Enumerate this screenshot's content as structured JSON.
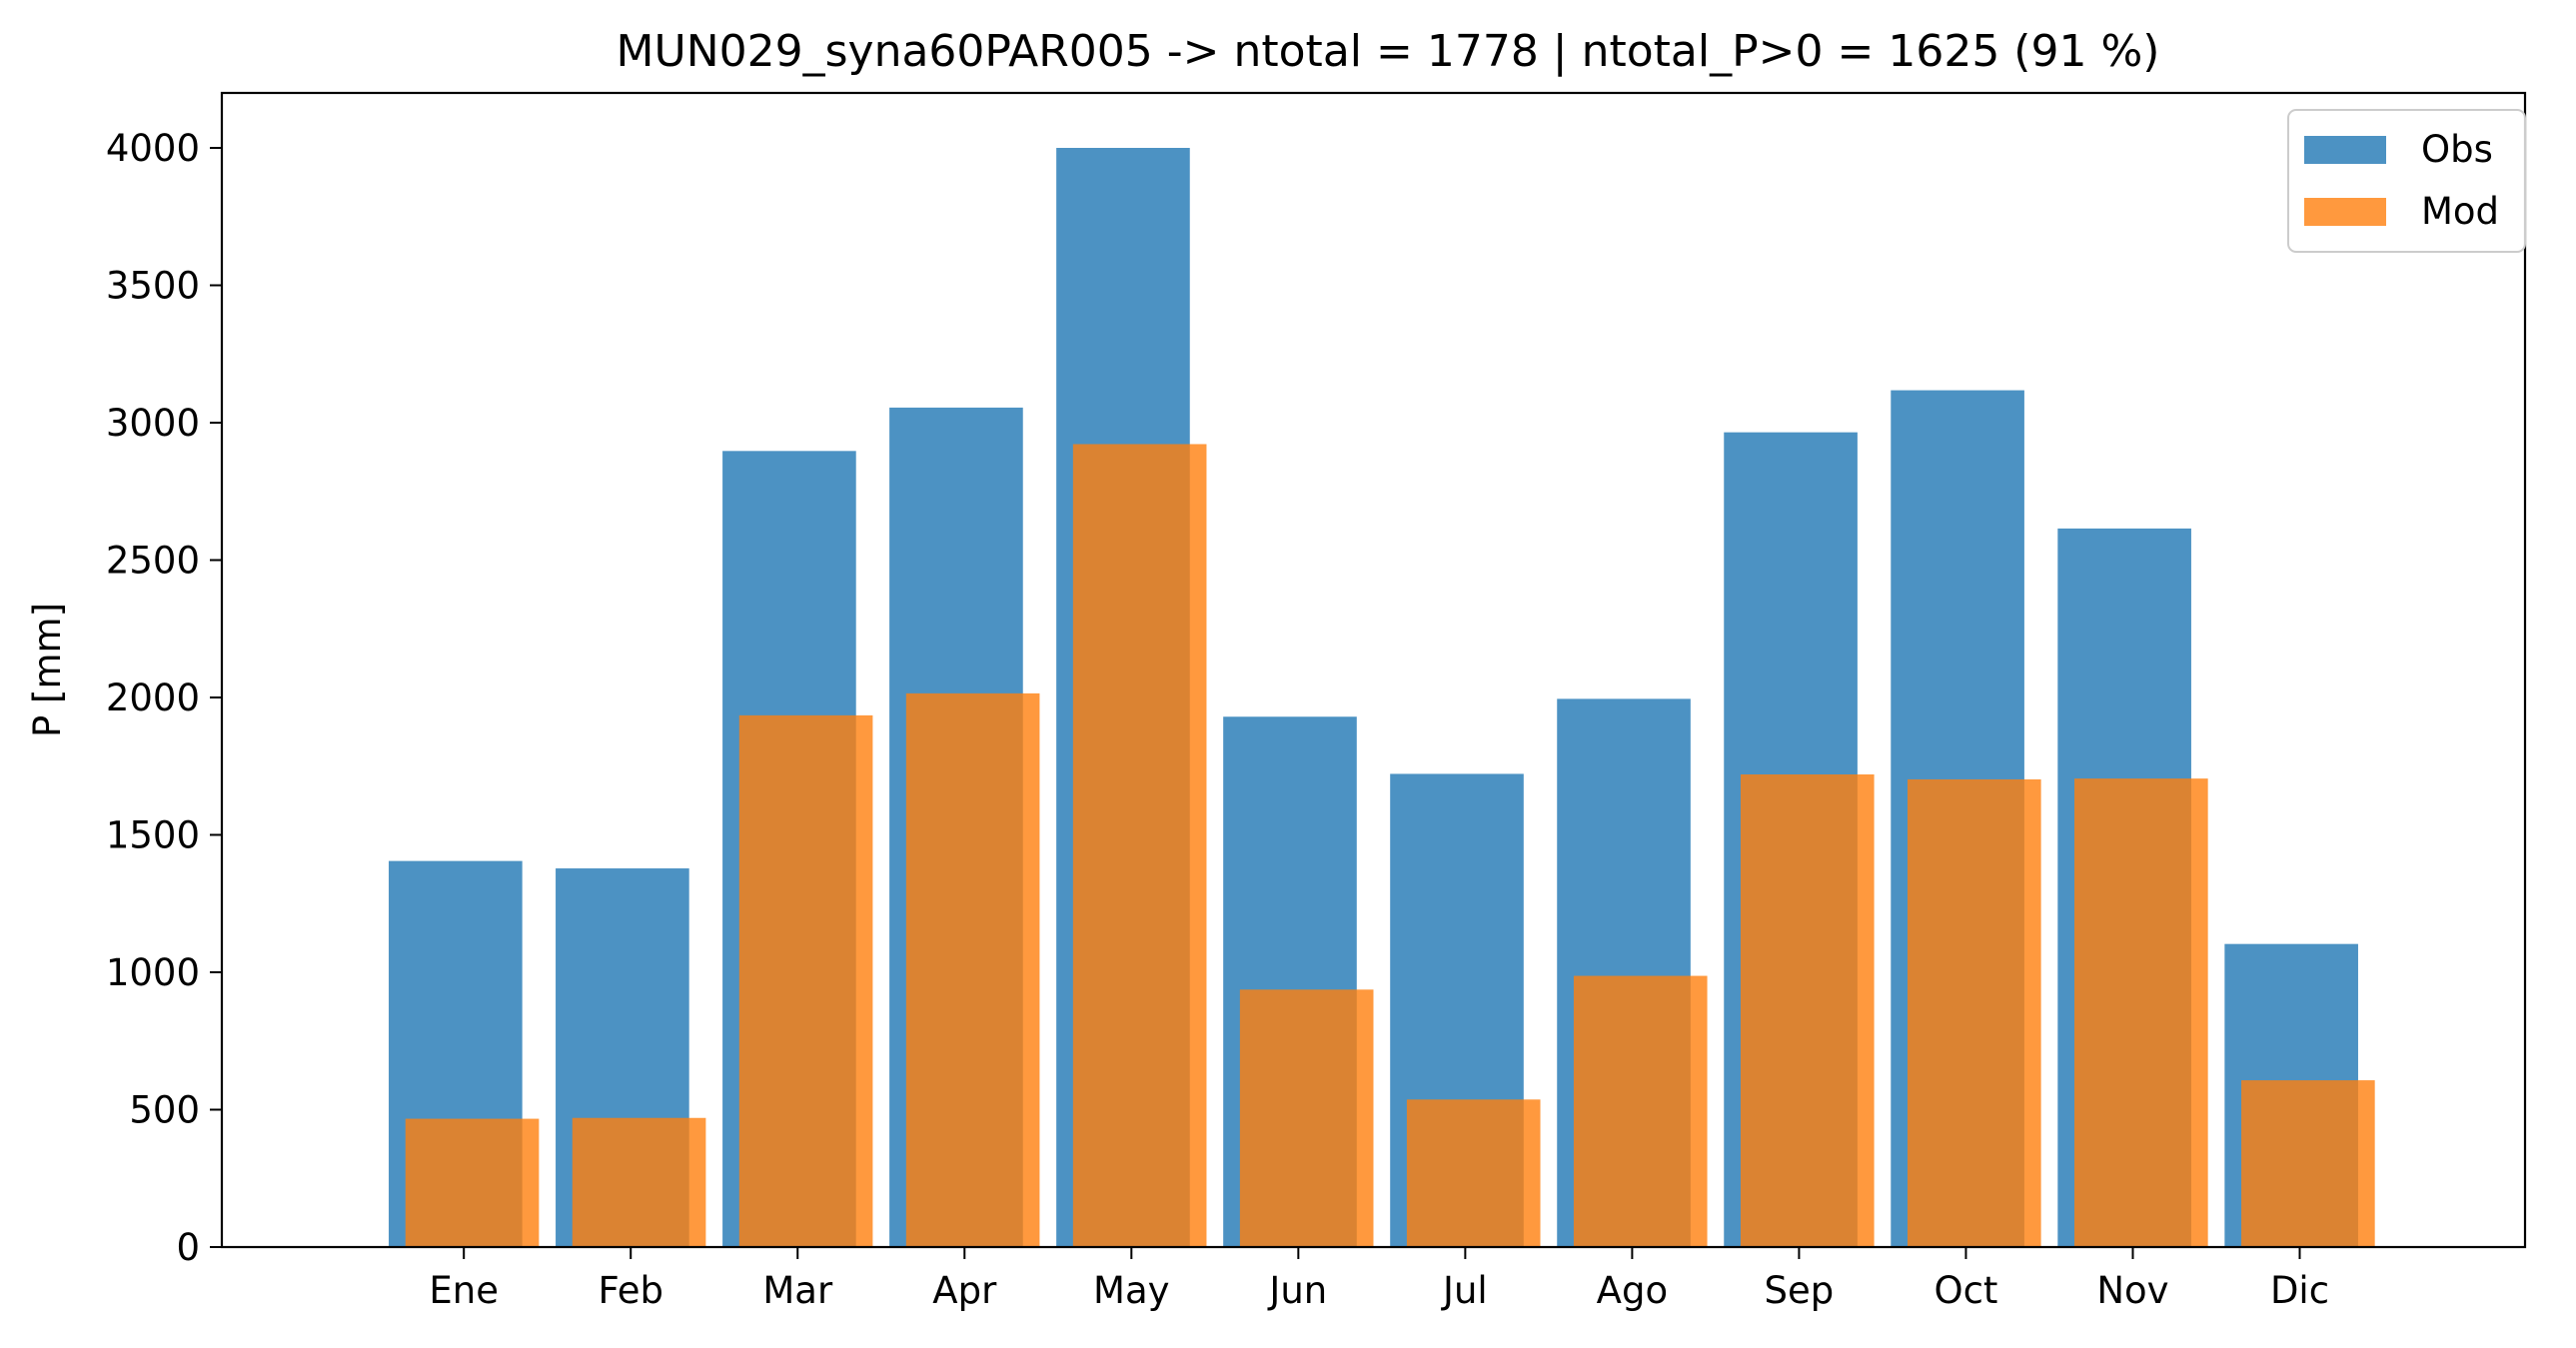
{
  "chart_data": {
    "type": "bar",
    "title": "MUN029_syna60PAR005 -> ntotal = 1778 | ntotal_P>0 = 1625 (91 %)",
    "xlabel": "",
    "ylabel": "P [mm]",
    "categories": [
      "Ene",
      "Feb",
      "Mar",
      "Apr",
      "May",
      "Jun",
      "Jul",
      "Ago",
      "Sep",
      "Oct",
      "Nov",
      "Dic"
    ],
    "series": [
      {
        "name": "Obs",
        "color": "#1f77b4",
        "alpha": 0.8,
        "values": [
          1405,
          1378,
          2897,
          3055,
          4000,
          1930,
          1722,
          1995,
          2965,
          3118,
          2615,
          1103
        ]
      },
      {
        "name": "Mod",
        "color": "#ff7f0e",
        "alpha": 0.8,
        "values": [
          467,
          470,
          1935,
          2015,
          2922,
          937,
          537,
          987,
          1720,
          1702,
          1705,
          607
        ]
      }
    ],
    "ylim": [
      0,
      4200
    ],
    "yticks": [
      0,
      500,
      1000,
      1500,
      2000,
      2500,
      3000,
      3500,
      4000
    ],
    "grid": false,
    "legend_position": "upper-right"
  }
}
